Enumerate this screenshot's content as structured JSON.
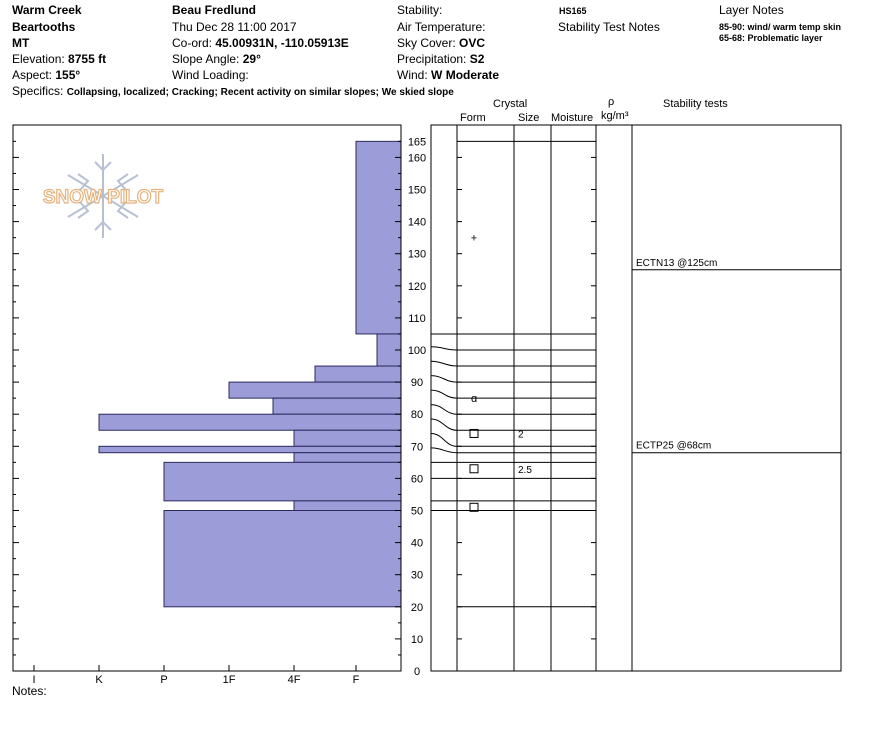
{
  "header": {
    "col1": {
      "location": "Warm Creek",
      "range": "Beartooths",
      "state": "MT",
      "elevation_label": "Elevation:",
      "elevation_value": "8755 ft",
      "aspect_label": "Aspect:",
      "aspect_value": "155°"
    },
    "col2": {
      "observer": "Beau  Fredlund",
      "datetime": "Thu Dec 28 11:00 2017",
      "coord_label": "Co-ord:",
      "coord_value": "45.00931N, -110.05913E",
      "slope_label": "Slope Angle:",
      "slope_value": "29°",
      "wind_loading_label": "Wind Loading:"
    },
    "col3": {
      "stability_label": "Stability:",
      "air_temp_label": "Air Temperature:",
      "sky_label": "Sky Cover:",
      "sky_value": "OVC",
      "precip_label": "Precipitation:",
      "precip_value": "S2",
      "wind_label": "Wind:",
      "wind_value": "W Moderate"
    },
    "col4": {
      "hs": "HS165",
      "stability_notes": "Stability Test Notes"
    },
    "layer_notes": {
      "title": "Layer Notes",
      "line1": "85-90: wind/ warm temp skin",
      "line2": "65-68: Problematic layer"
    },
    "specifics_label": "Specifics:",
    "specifics_value": "Collapsing, localized; Cracking; Recent activity on similar slopes; We skied slope"
  },
  "logo_text": "SNOW PILOT",
  "notes_label": "Notes:",
  "columns": {
    "crystal": "Crystal",
    "form": "Form",
    "size": "Size",
    "moisture": "Moisture",
    "rho": "ρ",
    "density_unit": "kg/m³",
    "stability_tests": "Stability tests"
  },
  "colors": {
    "hardness_fill": "#9c9cd8",
    "hardness_stroke": "#2b2b5e"
  },
  "chart_data": {
    "type": "bar",
    "title": "",
    "xlabel": "",
    "ylabel": "",
    "y_ticks": [
      0,
      10,
      20,
      30,
      40,
      50,
      60,
      70,
      80,
      90,
      100,
      110,
      120,
      130,
      140,
      150,
      160,
      165
    ],
    "ylim": [
      0,
      165
    ],
    "hardness_scale": [
      "I",
      "K",
      "P",
      "1F",
      "4F",
      "F"
    ],
    "hardness_layers": [
      {
        "bottom": 105,
        "top": 165,
        "hardness": "F"
      },
      {
        "bottom": 95,
        "top": 105,
        "hardness": "F+"
      },
      {
        "bottom": 90,
        "top": 95,
        "hardness": "4F+"
      },
      {
        "bottom": 85,
        "top": 90,
        "hardness": "1F"
      },
      {
        "bottom": 80,
        "top": 85,
        "hardness": "4F-"
      },
      {
        "bottom": 75,
        "top": 80,
        "hardness": "K"
      },
      {
        "bottom": 70,
        "top": 75,
        "hardness": "4F"
      },
      {
        "bottom": 68,
        "top": 70,
        "hardness": "K"
      },
      {
        "bottom": 65,
        "top": 68,
        "hardness": "4F"
      },
      {
        "bottom": 53,
        "top": 65,
        "hardness": "P"
      },
      {
        "bottom": 50,
        "top": 53,
        "hardness": "4F"
      },
      {
        "bottom": 20,
        "top": 50,
        "hardness": "P"
      }
    ],
    "layer_boundaries": [
      165,
      105,
      100,
      95,
      90,
      85,
      80,
      75,
      70,
      68,
      65,
      60,
      53,
      50,
      20
    ],
    "crystals": [
      {
        "height": 135,
        "form": "+"
      },
      {
        "height": 85,
        "form": "ɑ"
      },
      {
        "height": 74,
        "form": "□",
        "size": "2"
      },
      {
        "height": 63,
        "form": "□",
        "size": "2.5"
      },
      {
        "height": 51,
        "form": "□"
      }
    ],
    "stability_tests": [
      {
        "height": 125,
        "label": "ECTN13 @125cm"
      },
      {
        "height": 68,
        "label": "ECTP25 @68cm"
      }
    ]
  }
}
